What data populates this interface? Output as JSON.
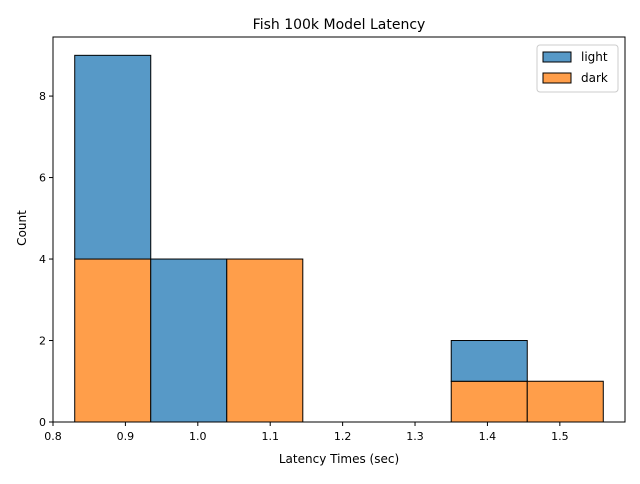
{
  "chart_data": {
    "type": "bar",
    "title": "Fish 100k Model Latency",
    "xlabel": "Latency Times (sec)",
    "ylabel": "Count",
    "xlim": [
      0.8,
      1.59
    ],
    "ylim": [
      0,
      9.45
    ],
    "xticks": [
      {
        "value": 0.8,
        "label": "0.8"
      },
      {
        "value": 0.9,
        "label": "0.9"
      },
      {
        "value": 1.0,
        "label": "1.0"
      },
      {
        "value": 1.1,
        "label": "1.1"
      },
      {
        "value": 1.2,
        "label": "1.2"
      },
      {
        "value": 1.3,
        "label": "1.3"
      },
      {
        "value": 1.4,
        "label": "1.4"
      },
      {
        "value": 1.5,
        "label": "1.5"
      }
    ],
    "yticks": [
      {
        "value": 0,
        "label": "0"
      },
      {
        "value": 2,
        "label": "2"
      },
      {
        "value": 4,
        "label": "4"
      },
      {
        "value": 6,
        "label": "6"
      },
      {
        "value": 8,
        "label": "8"
      }
    ],
    "bins": [
      [
        0.83,
        0.935
      ],
      [
        0.935,
        1.04
      ],
      [
        1.04,
        1.145
      ],
      [
        1.145,
        1.245
      ],
      [
        1.245,
        1.35
      ],
      [
        1.35,
        1.455
      ],
      [
        1.455,
        1.56
      ]
    ],
    "series": [
      {
        "name": "light",
        "color": "#5799C7",
        "values": [
          5,
          4,
          0,
          0,
          0,
          1,
          0
        ]
      },
      {
        "name": "dark",
        "color": "#FF9E4A",
        "values": [
          4,
          0,
          4,
          0,
          0,
          1,
          1
        ]
      }
    ],
    "stacked": true,
    "legend": {
      "position": "top-right",
      "entries": [
        "light",
        "dark"
      ]
    },
    "grid": false
  }
}
